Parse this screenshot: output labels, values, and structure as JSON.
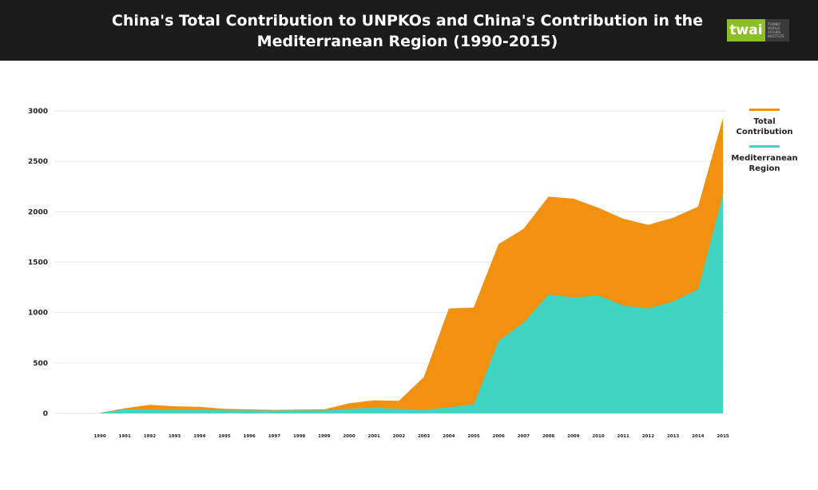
{
  "header": {
    "title": "China's Total Contribution to UNPKOs and China's Contribution in the Mediterranean Region (1990-2015)",
    "logo_text": "twai",
    "logo_subtext": [
      "TORINO",
      "WORLD",
      "AFFAIRS",
      "INSTITUTE"
    ]
  },
  "colors": {
    "total": "#F2900F",
    "mediterranean": "#41D4C2",
    "header_bg": "#1c1c1c",
    "logo_green": "#8cbf26"
  },
  "chart_data": {
    "type": "area",
    "title": "China's Total Contribution to UNPKOs and China's Contribution in the Mediterranean Region (1990-2015)",
    "x": [
      "1990",
      "1991",
      "1992",
      "1993",
      "1994",
      "1995",
      "1996",
      "1997",
      "1998",
      "1999",
      "2000",
      "2001",
      "2002",
      "2003",
      "2004",
      "2005",
      "2006",
      "2007",
      "2008",
      "2009",
      "2010",
      "2011",
      "2012",
      "2013",
      "2014",
      "2015"
    ],
    "series": [
      {
        "name": "Total Contribution",
        "values": [
          5,
          50,
          85,
          70,
          65,
          45,
          40,
          35,
          38,
          40,
          100,
          130,
          125,
          360,
          1040,
          1050,
          1680,
          1830,
          2150,
          2130,
          2040,
          1930,
          1870,
          1940,
          2050,
          2930
        ]
      },
      {
        "name": "Mediterranean Region",
        "values": [
          5,
          40,
          40,
          35,
          35,
          30,
          30,
          28,
          30,
          30,
          45,
          55,
          45,
          35,
          60,
          90,
          720,
          900,
          1180,
          1150,
          1170,
          1070,
          1040,
          1110,
          1230,
          2170
        ]
      }
    ],
    "yticks": [
      0,
      500,
      1000,
      1500,
      2000,
      2500,
      3000
    ],
    "ylim": [
      0,
      3000
    ],
    "xlabel": "",
    "ylabel": "",
    "grid": true,
    "legend_position": "right"
  }
}
